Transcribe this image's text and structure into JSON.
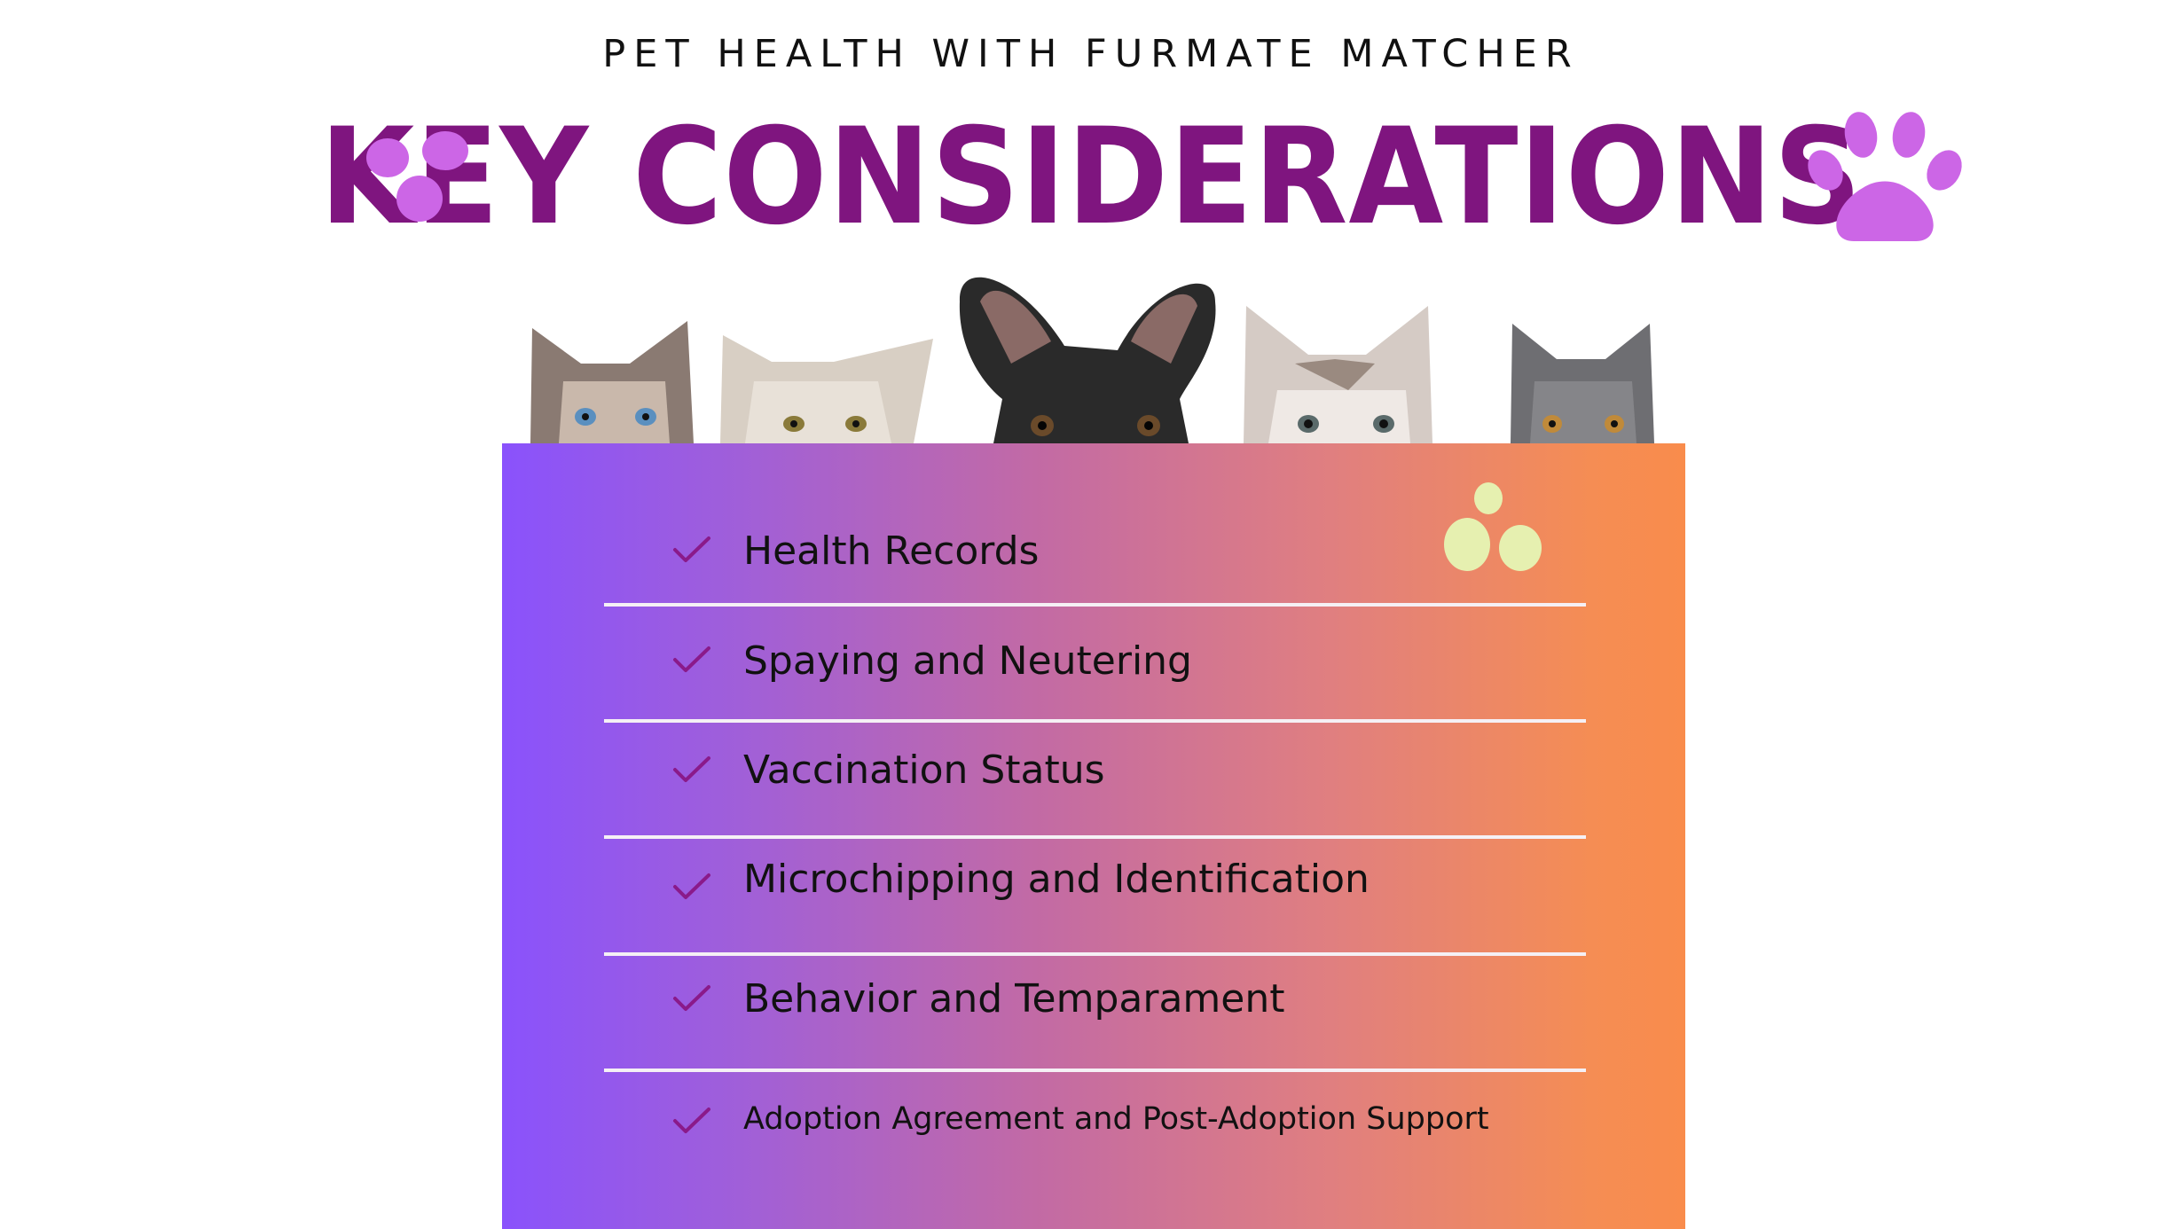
{
  "header": {
    "subtitle": "PET HEALTH WITH FURMATE MATCHER",
    "title": "KEY CONSIDERATIONS"
  },
  "decor": {
    "left_paw_icon": "paw-print-icon",
    "right_paw_icon": "paw-print-icon",
    "panel_dots_icon": "paw-dots-icon",
    "pets_image": "peeking-cats-and-dog"
  },
  "colors": {
    "title": "#7f157f",
    "paw": "#cc66e6",
    "check": "#8a1a8a",
    "panel_start": "#8a52fc",
    "panel_end": "#f98c4c",
    "dots": "#e6f0b0"
  },
  "considerations": [
    {
      "label": "Health Records"
    },
    {
      "label": "Spaying and Neutering"
    },
    {
      "label": "Vaccination Status"
    },
    {
      "label": "Microchipping and Identification"
    },
    {
      "label": "Behavior and Temparament"
    },
    {
      "label": "Adoption Agreement and Post-Adoption Support"
    }
  ]
}
